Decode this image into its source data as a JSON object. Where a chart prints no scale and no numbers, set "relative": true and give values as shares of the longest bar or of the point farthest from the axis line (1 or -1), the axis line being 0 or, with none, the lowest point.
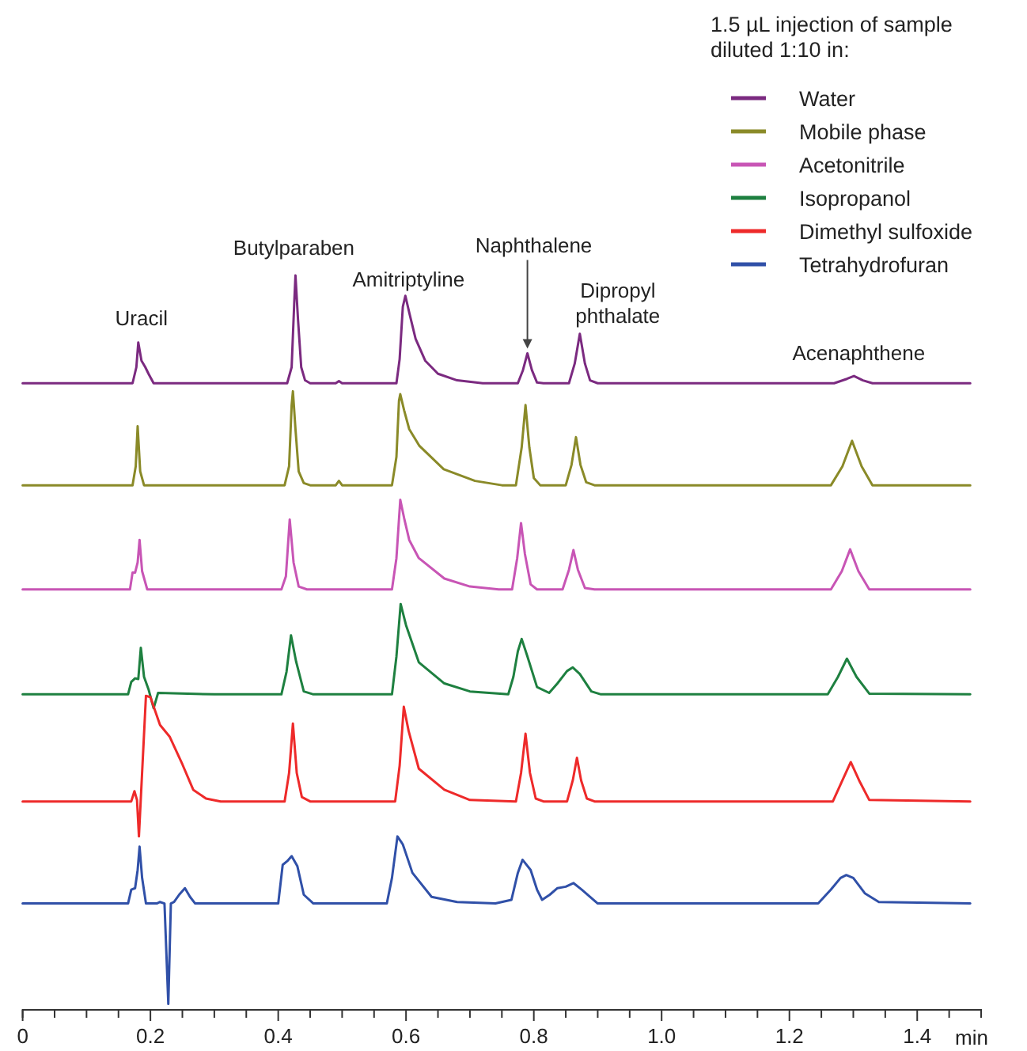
{
  "chart_data": {
    "type": "line",
    "relative": true,
    "xlim": [
      0,
      1.5
    ],
    "tick_labels": "x",
    "legend": "top right",
    "xlabel": "min",
    "legend_title": "1.5 µL injection of sample\ndiluted 1:10 in:",
    "xticks": [
      0,
      {
        "value": 0.05,
        "label": null
      },
      {
        "value": 0.1,
        "label": null
      },
      {
        "value": 0.15,
        "label": null
      },
      0.2,
      {
        "value": 0.25,
        "label": null
      },
      {
        "value": 0.3,
        "label": null
      },
      {
        "value": 0.35,
        "label": null
      },
      0.4,
      {
        "value": 0.45,
        "label": null
      },
      {
        "value": 0.5,
        "label": null
      },
      {
        "value": 0.55,
        "label": null
      },
      0.6,
      {
        "value": 0.65,
        "label": null
      },
      {
        "value": 0.7,
        "label": null
      },
      {
        "value": 0.75,
        "label": null
      },
      0.8,
      {
        "value": 0.85,
        "label": null
      },
      {
        "value": 0.9,
        "label": null
      },
      {
        "value": 0.95,
        "label": null
      },
      {
        "value": 1,
        "label": "1.0"
      },
      {
        "value": 1.05,
        "label": null
      },
      {
        "value": 1.1,
        "label": null
      },
      {
        "value": 1.15,
        "label": null
      },
      1.2,
      {
        "value": 1.25,
        "label": null
      },
      {
        "value": 1.3,
        "label": null
      },
      {
        "value": 1.35,
        "label": null
      },
      1.4,
      {
        "value": 1.45,
        "label": null
      },
      {
        "value": 1.5,
        "label": null
      }
    ],
    "annotations": [
      {
        "text": "Uracil",
        "x": 0.181,
        "y": 0.908
      },
      {
        "text": "Butylparaben",
        "x": 0.427,
        "y": 1
      },
      {
        "text": "Amitriptyline",
        "x": 0.599,
        "y": 0.972
      },
      {
        "text": "Naphthalene",
        "x": 0.79,
        "y": 0.893
      },
      {
        "text": "Dipropyl\nphthalate",
        "x": 0.872,
        "y": 0.92
      },
      {
        "text": "Acenaphthene",
        "x": 1.301,
        "y": 0.862
      }
    ],
    "series": [
      {
        "name": "Water",
        "color": "#7b2a80",
        "x": [
          0,
          0.172,
          0.178,
          0.181,
          0.186,
          0.192,
          0.197,
          0.205,
          0.414,
          0.421,
          0.425,
          0.427,
          0.431,
          0.436,
          0.442,
          0.45,
          0.49,
          0.495,
          0.5,
          0.585,
          0.59,
          0.595,
          0.599,
          0.605,
          0.615,
          0.63,
          0.65,
          0.68,
          0.72,
          0.775,
          0.783,
          0.79,
          0.797,
          0.805,
          0.815,
          0.855,
          0.864,
          0.872,
          0.88,
          0.888,
          0.9,
          1.27,
          1.29,
          1.301,
          1.315,
          1.33,
          1.483
        ],
        "values": [
          0.852,
          0.852,
          0.874,
          0.908,
          0.883,
          0.874,
          0.865,
          0.852,
          0.852,
          0.874,
          0.961,
          1,
          0.939,
          0.874,
          0.856,
          0.852,
          0.852,
          0.855,
          0.852,
          0.852,
          0.885,
          0.957,
          0.972,
          0.949,
          0.913,
          0.883,
          0.865,
          0.856,
          0.852,
          0.852,
          0.87,
          0.893,
          0.87,
          0.853,
          0.852,
          0.852,
          0.879,
          0.92,
          0.879,
          0.856,
          0.852,
          0.852,
          0.858,
          0.862,
          0.856,
          0.852,
          0.852
        ]
      },
      {
        "name": "Mobile phase",
        "color": "#8a8a28",
        "x": [
          0,
          0.172,
          0.177,
          0.18,
          0.184,
          0.19,
          0.41,
          0.417,
          0.421,
          0.423,
          0.427,
          0.432,
          0.44,
          0.45,
          0.49,
          0.495,
          0.5,
          0.578,
          0.585,
          0.589,
          0.591,
          0.597,
          0.605,
          0.621,
          0.659,
          0.708,
          0.75,
          0.772,
          0.781,
          0.787,
          0.793,
          0.8,
          0.81,
          0.85,
          0.859,
          0.866,
          0.873,
          0.882,
          0.895,
          1.265,
          1.283,
          1.298,
          1.313,
          1.33,
          1.483
        ],
        "values": [
          0.712,
          0.712,
          0.738,
          0.793,
          0.731,
          0.712,
          0.712,
          0.738,
          0.822,
          0.841,
          0.789,
          0.731,
          0.715,
          0.712,
          0.712,
          0.718,
          0.712,
          0.712,
          0.751,
          0.828,
          0.837,
          0.815,
          0.789,
          0.766,
          0.734,
          0.718,
          0.712,
          0.712,
          0.764,
          0.822,
          0.764,
          0.722,
          0.712,
          0.712,
          0.74,
          0.778,
          0.74,
          0.716,
          0.712,
          0.712,
          0.738,
          0.773,
          0.738,
          0.712,
          0.712
        ]
      },
      {
        "name": "Acetonitrile",
        "color": "#c855b5",
        "x": [
          0,
          0.168,
          0.172,
          0.176,
          0.18,
          0.183,
          0.187,
          0.195,
          0.405,
          0.412,
          0.418,
          0.424,
          0.432,
          0.445,
          0.578,
          0.585,
          0.591,
          0.597,
          0.605,
          0.62,
          0.66,
          0.7,
          0.745,
          0.766,
          0.774,
          0.78,
          0.786,
          0.795,
          0.805,
          0.845,
          0.855,
          0.862,
          0.869,
          0.88,
          0.895,
          1.265,
          1.282,
          1.295,
          1.308,
          1.325,
          1.483
        ],
        "values": [
          0.569,
          0.569,
          0.592,
          0.592,
          0.606,
          0.637,
          0.594,
          0.569,
          0.569,
          0.587,
          0.665,
          0.606,
          0.573,
          0.569,
          0.569,
          0.612,
          0.692,
          0.667,
          0.637,
          0.612,
          0.584,
          0.573,
          0.569,
          0.569,
          0.612,
          0.66,
          0.618,
          0.576,
          0.569,
          0.569,
          0.596,
          0.623,
          0.596,
          0.571,
          0.569,
          0.569,
          0.594,
          0.624,
          0.594,
          0.569,
          0.569
        ]
      },
      {
        "name": "Isopropanol",
        "color": "#1e8040",
        "x": [
          0,
          0.165,
          0.17,
          0.176,
          0.181,
          0.185,
          0.19,
          0.197,
          0.205,
          0.212,
          0.3,
          0.405,
          0.413,
          0.42,
          0.428,
          0.44,
          0.455,
          0.578,
          0.585,
          0.5916,
          0.6,
          0.62,
          0.66,
          0.7,
          0.76,
          0.768,
          0.775,
          0.781,
          0.79,
          0.805,
          0.824,
          0.837,
          0.852,
          0.861,
          0.872,
          0.89,
          0.905,
          1.26,
          1.276,
          1.29,
          1.305,
          1.325,
          1.483
        ],
        "values": [
          0.425,
          0.425,
          0.442,
          0.447,
          0.446,
          0.489,
          0.449,
          0.432,
          0.406,
          0.427,
          0.425,
          0.425,
          0.456,
          0.506,
          0.47,
          0.429,
          0.425,
          0.425,
          0.477,
          0.549,
          0.52,
          0.469,
          0.44,
          0.429,
          0.425,
          0.449,
          0.484,
          0.501,
          0.477,
          0.435,
          0.427,
          0.44,
          0.457,
          0.462,
          0.453,
          0.429,
          0.425,
          0.425,
          0.449,
          0.474,
          0.449,
          0.426,
          0.425
        ]
      },
      {
        "name": "Dimethyl sulfoxide",
        "color": "#ee2a2a",
        "x": [
          0,
          0.17,
          0.175,
          0.179,
          0.182,
          0.193,
          0.2,
          0.215,
          0.23,
          0.25,
          0.267,
          0.287,
          0.31,
          0.41,
          0.417,
          0.423,
          0.429,
          0.437,
          0.45,
          0.583,
          0.59,
          0.5965,
          0.604,
          0.62,
          0.66,
          0.7,
          0.772,
          0.78,
          0.787,
          0.794,
          0.803,
          0.815,
          0.852,
          0.861,
          0.8675,
          0.874,
          0.883,
          0.895,
          1.268,
          1.283,
          1.296,
          1.309,
          1.325,
          1.483
        ],
        "values": [
          0.278,
          0.278,
          0.292,
          0.28,
          0.23,
          0.423,
          0.421,
          0.383,
          0.367,
          0.329,
          0.294,
          0.282,
          0.278,
          0.278,
          0.317,
          0.385,
          0.317,
          0.284,
          0.278,
          0.278,
          0.327,
          0.408,
          0.375,
          0.323,
          0.294,
          0.28,
          0.278,
          0.317,
          0.371,
          0.317,
          0.282,
          0.278,
          0.278,
          0.307,
          0.338,
          0.307,
          0.282,
          0.278,
          0.278,
          0.307,
          0.332,
          0.307,
          0.28,
          0.278
        ]
      },
      {
        "name": "Tetrahydrofuran",
        "color": "#3050a8",
        "x": [
          0,
          0.165,
          0.17,
          0.176,
          0.18,
          0.183,
          0.187,
          0.193,
          0.21,
          0.215,
          0.222,
          0.228,
          0.232,
          0.237,
          0.245,
          0.254,
          0.262,
          0.27,
          0.4,
          0.407,
          0.414,
          0.421,
          0.43,
          0.44,
          0.455,
          0.57,
          0.578,
          0.5866,
          0.595,
          0.61,
          0.64,
          0.68,
          0.74,
          0.765,
          0.775,
          0.7824,
          0.795,
          0.805,
          0.813,
          0.825,
          0.837,
          0.85,
          0.862,
          0.875,
          0.9,
          1.245,
          1.265,
          1.28,
          1.289,
          1.3,
          1.318,
          1.34,
          1.483
        ],
        "values": [
          0.138,
          0.138,
          0.157,
          0.159,
          0.184,
          0.216,
          0.173,
          0.138,
          0.138,
          0.14,
          0.138,
          0,
          0.138,
          0.14,
          0.15,
          0.159,
          0.147,
          0.138,
          0.138,
          0.191,
          0.196,
          0.203,
          0.189,
          0.15,
          0.138,
          0.138,
          0.173,
          0.23,
          0.219,
          0.18,
          0.147,
          0.14,
          0.138,
          0.143,
          0.18,
          0.198,
          0.184,
          0.157,
          0.143,
          0.15,
          0.159,
          0.161,
          0.166,
          0.157,
          0.138,
          0.138,
          0.157,
          0.173,
          0.177,
          0.173,
          0.152,
          0.14,
          0.138
        ]
      }
    ]
  }
}
